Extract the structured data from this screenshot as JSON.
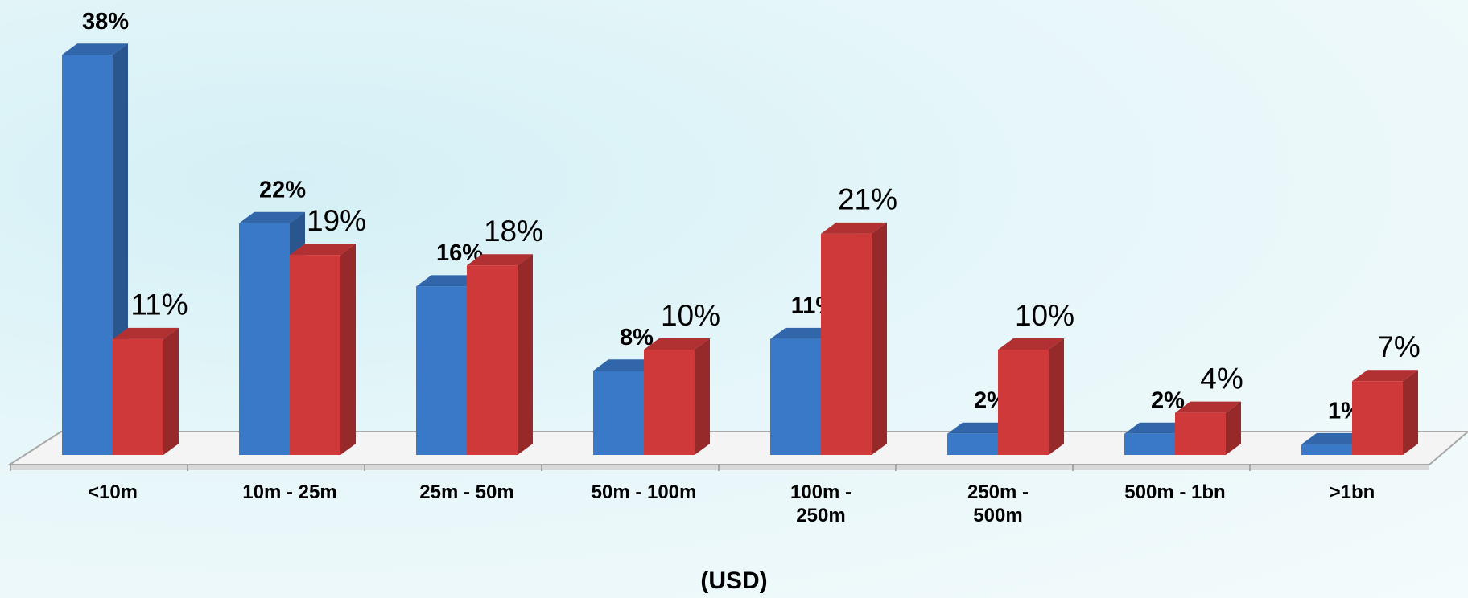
{
  "chart_data": {
    "type": "bar3d",
    "categories": [
      "<10m",
      "10m - 25m",
      "25m - 50m",
      "50m - 100m",
      "100m - 250m",
      "250m - 500m",
      "500m - 1bn",
      ">1bn"
    ],
    "series": [
      {
        "color": "#3a78c8",
        "values": [
          38,
          22,
          16,
          8,
          11,
          2,
          2,
          1
        ],
        "value_labels": [
          "38%",
          "22%",
          "16%",
          "8%",
          "11%",
          "2%",
          "2%",
          "1%"
        ]
      },
      {
        "color": "#d0393a",
        "values": [
          11,
          19,
          18,
          10,
          21,
          10,
          4,
          7
        ],
        "value_labels": [
          "11%",
          "19%",
          "18%",
          "10%",
          "21%",
          "10%",
          "4%",
          "7%"
        ]
      }
    ],
    "x_label": "(USD)"
  }
}
